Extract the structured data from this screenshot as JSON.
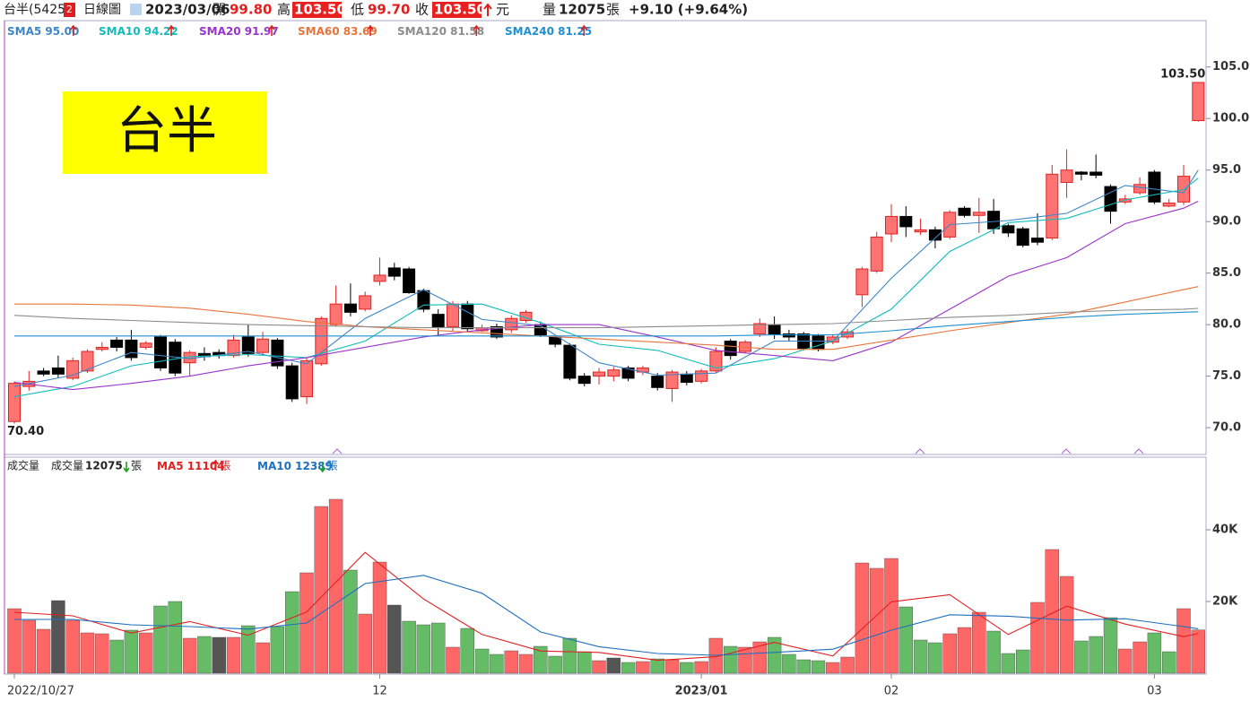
{
  "header": {
    "name": "台半(5425)",
    "badge": "2",
    "period": "日線圖",
    "date": "2023/03/06",
    "open_label": "開",
    "open": "99.80",
    "high_label": "高",
    "high": "103.50",
    "low_label": "低",
    "low": "99.70",
    "close_label": "收",
    "close": "103.50",
    "unit": "元",
    "volume_label": "量",
    "volume": "12075",
    "volume_unit": "張",
    "change": "+9.10 (+9.64%)"
  },
  "stamp": "台半",
  "chart_data": [
    {
      "type": "candlestick",
      "up_color": "#ff7373",
      "down_color": "#000000",
      "open": [
        70.6,
        74.0,
        75.5,
        75.8,
        74.8,
        75.5,
        77.6,
        78.5,
        78.5,
        77.8,
        78.8,
        78.3,
        76.3,
        77.2,
        77.3,
        77.0,
        78.8,
        77.3,
        78.5,
        76.0,
        73.0,
        76.2,
        80.0,
        82.0,
        81.5,
        84.2,
        85.5,
        85.4,
        83.3,
        81.0,
        79.8,
        82.0,
        79.4,
        79.8,
        79.5,
        80.4,
        80.0,
        78.8,
        78.0,
        75.0,
        75.0,
        75.0,
        75.8,
        75.4,
        75.0,
        73.8,
        75.2,
        74.5,
        75.5,
        78.4,
        77.4,
        79.1,
        80.0,
        79.1,
        79.1,
        78.9,
        78.3,
        78.8,
        82.9,
        85.2,
        88.8,
        90.5,
        89.0,
        89.2,
        88.5,
        91.3,
        90.6,
        91.0,
        89.6,
        89.3,
        88.4,
        88.4,
        93.8,
        94.8,
        94.8,
        93.4,
        91.9,
        92.8,
        94.8,
        91.5,
        91.9,
        99.8
      ],
      "high": [
        74.5,
        75.5,
        75.8,
        77.0,
        76.8,
        77.6,
        78.3,
        78.8,
        79.5,
        78.4,
        79.0,
        78.6,
        77.5,
        77.8,
        77.6,
        79.0,
        80.0,
        79.3,
        78.7,
        76.3,
        76.8,
        80.8,
        83.8,
        84.0,
        83.2,
        86.5,
        86.0,
        85.6,
        83.5,
        81.5,
        82.3,
        82.3,
        80.0,
        80.1,
        80.9,
        81.4,
        80.3,
        78.9,
        78.2,
        75.3,
        75.8,
        75.9,
        76.0,
        76.0,
        75.3,
        75.6,
        75.5,
        75.7,
        77.8,
        78.6,
        78.5,
        80.6,
        80.8,
        79.5,
        79.3,
        79.1,
        79.0,
        79.6,
        85.6,
        89.0,
        91.7,
        91.5,
        90.3,
        89.5,
        91.1,
        91.5,
        92.3,
        92.2,
        89.8,
        89.5,
        90.8,
        95.5,
        97.0,
        94.9,
        96.5,
        93.6,
        92.6,
        94.3,
        95.0,
        92.2,
        95.5,
        103.5
      ],
      "low": [
        70.4,
        73.6,
        75.0,
        74.8,
        74.6,
        75.3,
        77.4,
        77.4,
        76.5,
        77.6,
        75.5,
        75.0,
        75.0,
        76.5,
        76.7,
        76.8,
        76.9,
        77.0,
        75.7,
        72.5,
        72.3,
        76.0,
        79.8,
        80.8,
        81.3,
        83.8,
        84.3,
        83.0,
        81.2,
        79.0,
        79.4,
        79.3,
        79.3,
        78.6,
        79.2,
        80.2,
        78.8,
        77.8,
        74.6,
        74.0,
        74.2,
        74.5,
        74.5,
        75.1,
        73.6,
        72.5,
        74.1,
        74.3,
        75.3,
        76.6,
        77.2,
        78.8,
        78.6,
        78.4,
        77.5,
        77.4,
        78.1,
        78.6,
        81.7,
        85.0,
        88.0,
        88.5,
        88.7,
        87.4,
        88.3,
        90.4,
        88.9,
        88.8,
        88.5,
        87.5,
        87.7,
        88.2,
        92.3,
        94.0,
        94.2,
        89.8,
        91.7,
        92.6,
        91.7,
        91.4,
        91.6,
        99.7
      ],
      "close": [
        74.3,
        74.5,
        75.2,
        75.2,
        76.5,
        77.4,
        77.8,
        77.8,
        76.8,
        78.2,
        75.8,
        75.3,
        77.3,
        76.9,
        77.0,
        78.5,
        77.2,
        78.6,
        76.0,
        72.8,
        76.5,
        80.6,
        82.0,
        81.2,
        82.8,
        84.8,
        84.7,
        83.1,
        81.5,
        79.8,
        82.0,
        79.6,
        79.7,
        78.8,
        80.6,
        81.2,
        79.0,
        78.1,
        74.8,
        74.3,
        75.4,
        75.6,
        74.8,
        75.8,
        73.9,
        75.4,
        74.4,
        75.5,
        77.4,
        77.0,
        78.3,
        80.1,
        79.1,
        78.8,
        77.7,
        77.6,
        78.8,
        79.3,
        85.4,
        88.5,
        90.5,
        89.5,
        89.2,
        88.2,
        90.9,
        90.6,
        90.9,
        89.3,
        88.9,
        87.7,
        88.0,
        94.6,
        95.0,
        94.6,
        94.5,
        91.0,
        92.2,
        93.6,
        91.9,
        91.8,
        94.4,
        103.5
      ],
      "ylim": [
        67.4,
        109.5
      ],
      "yticks": [
        {
          "value": 70,
          "label": "70.0"
        },
        {
          "value": 75,
          "label": "75.0"
        },
        {
          "value": 80,
          "label": "80.0"
        },
        {
          "value": 85,
          "label": "85.0"
        },
        {
          "value": 90,
          "label": "90.0"
        },
        {
          "value": 95,
          "label": "95.0"
        },
        {
          "value": 100,
          "label": "100.0"
        },
        {
          "value": 105,
          "label": "105.0"
        }
      ],
      "annotations": [
        {
          "index": 81,
          "value": 103.5,
          "label": "103.50"
        },
        {
          "index": 0,
          "value": 70.4,
          "label": "70.40"
        }
      ],
      "ma_x": [
        0,
        4,
        8,
        12,
        16,
        20,
        24,
        28,
        32,
        36,
        40,
        44,
        48,
        52,
        56,
        60,
        64,
        68,
        72,
        76,
        80,
        81
      ],
      "series": [
        {
          "name": "SMA5",
          "label": "95.00",
          "color": "#3d85c6",
          "values": [
            74.0,
            75.1,
            77.3,
            76.7,
            77.4,
            76.2,
            80.6,
            83.4,
            80.5,
            79.9,
            76.3,
            75.1,
            75.3,
            78.4,
            78.4,
            84.5,
            89.7,
            90.1,
            90.8,
            93.5,
            92.8,
            95.0
          ]
        },
        {
          "name": "SMA10",
          "label": "94.22",
          "color": "#11bcbc",
          "values": [
            73.0,
            74.0,
            76.0,
            76.9,
            77.1,
            76.8,
            78.4,
            81.9,
            82.0,
            80.2,
            78.1,
            77.5,
            75.8,
            76.7,
            78.4,
            81.5,
            87.1,
            89.9,
            90.3,
            92.1,
            93.1,
            94.22
          ]
        },
        {
          "name": "SMA20",
          "label": "91.97",
          "color": "#9933cc",
          "values": [
            74.4,
            73.7,
            74.3,
            75.0,
            76.0,
            76.8,
            77.8,
            78.8,
            79.5,
            80.0,
            80.0,
            78.8,
            77.5,
            77.0,
            76.5,
            78.3,
            81.5,
            84.7,
            86.5,
            89.8,
            91.3,
            91.97
          ]
        },
        {
          "name": "SMA60",
          "label": "83.69",
          "color": "#e8743b",
          "values": [
            82.0,
            82.0,
            81.9,
            81.6,
            81.0,
            80.3,
            79.8,
            79.5,
            79.2,
            78.9,
            78.6,
            78.3,
            78.0,
            77.6,
            77.6,
            78.5,
            79.4,
            80.2,
            81.0,
            82.2,
            83.4,
            83.69
          ]
        },
        {
          "name": "SMA120",
          "label": "81.58",
          "color": "#8c8c8c",
          "values": [
            80.9,
            80.6,
            80.4,
            80.2,
            80.0,
            79.9,
            79.8,
            79.7,
            79.7,
            79.7,
            79.7,
            79.8,
            79.9,
            80.0,
            80.1,
            80.4,
            80.7,
            80.9,
            81.2,
            81.4,
            81.5,
            81.58
          ]
        },
        {
          "name": "SMA240",
          "label": "81.25",
          "color": "#1f8fcf",
          "values": [
            78.9,
            78.9,
            78.9,
            78.9,
            78.9,
            78.9,
            78.9,
            78.9,
            78.9,
            78.9,
            78.9,
            78.9,
            78.9,
            79.0,
            79.0,
            79.4,
            79.9,
            80.3,
            80.7,
            81.0,
            81.2,
            81.25
          ]
        }
      ]
    },
    {
      "type": "bar",
      "title": "成交量",
      "legend": {
        "label": "成交量",
        "value": "12075",
        "unit": "張"
      },
      "values": [
        18000,
        14750,
        12250,
        20250,
        14750,
        11250,
        11000,
        9250,
        12000,
        11250,
        18750,
        20000,
        9750,
        10250,
        10000,
        10000,
        13250,
        8500,
        13000,
        22750,
        28000,
        46500,
        48500,
        28750,
        16500,
        31000,
        19000,
        14500,
        13500,
        14000,
        7250,
        12500,
        6750,
        5250,
        6250,
        5250,
        7500,
        4750,
        9750,
        6000,
        3500,
        4250,
        3000,
        3250,
        4000,
        3750,
        3000,
        3250,
        9750,
        7500,
        7250,
        8750,
        10000,
        5250,
        3750,
        3500,
        3000,
        4500,
        30750,
        29250,
        32000,
        18500,
        9250,
        8500,
        11000,
        12750,
        17000,
        11750,
        5500,
        6500,
        19750,
        34500,
        27000,
        9000,
        10250,
        15500,
        6750,
        8750,
        11250,
        6000,
        18000,
        12075
      ],
      "colors": [
        "#ff6666",
        "#ff6666",
        "#ff6666",
        "#555555",
        "#ff6666",
        "#ff6666",
        "#ff6666",
        "#66bb66",
        "#66bb66",
        "#ff6666",
        "#66bb66",
        "#66bb66",
        "#ff6666",
        "#66bb66",
        "#555555",
        "#ff6666",
        "#66bb66",
        "#ff6666",
        "#66bb66",
        "#66bb66",
        "#ff6666",
        "#ff6666",
        "#ff6666",
        "#66bb66",
        "#ff6666",
        "#ff6666",
        "#555555",
        "#66bb66",
        "#66bb66",
        "#66bb66",
        "#ff6666",
        "#66bb66",
        "#66bb66",
        "#66bb66",
        "#ff6666",
        "#ff6666",
        "#66bb66",
        "#66bb66",
        "#66bb66",
        "#66bb66",
        "#ff6666",
        "#555555",
        "#66bb66",
        "#ff6666",
        "#66bb66",
        "#ff6666",
        "#66bb66",
        "#ff6666",
        "#ff6666",
        "#66bb66",
        "#ff6666",
        "#ff6666",
        "#66bb66",
        "#66bb66",
        "#66bb66",
        "#66bb66",
        "#ff6666",
        "#ff6666",
        "#ff6666",
        "#ff6666",
        "#ff6666",
        "#66bb66",
        "#66bb66",
        "#66bb66",
        "#ff6666",
        "#ff6666",
        "#ff6666",
        "#66bb66",
        "#66bb66",
        "#66bb66",
        "#ff6666",
        "#ff6666",
        "#ff6666",
        "#66bb66",
        "#66bb66",
        "#66bb66",
        "#ff6666",
        "#ff6666",
        "#66bb66",
        "#66bb66",
        "#ff6666",
        "#ff6666"
      ],
      "ylim": [
        0,
        60000
      ],
      "yticks": [
        {
          "value": 20000,
          "label": "20K"
        },
        {
          "value": 40000,
          "label": "40K"
        }
      ],
      "ma_x": [
        0,
        4,
        8,
        12,
        16,
        20,
        24,
        28,
        32,
        36,
        40,
        44,
        48,
        52,
        56,
        60,
        64,
        68,
        72,
        76,
        80,
        81
      ],
      "series": [
        {
          "name": "MA5",
          "label": "11104",
          "unit": "張",
          "color": "#e02020",
          "values": [
            17000,
            16000,
            11200,
            14400,
            10600,
            17100,
            33700,
            20700,
            10800,
            6200,
            5800,
            3600,
            4600,
            8600,
            4800,
            19900,
            21900,
            10800,
            18700,
            13700,
            10200,
            11104
          ]
        },
        {
          "name": "MA10",
          "label": "12389",
          "unit": "張",
          "color": "#1f6fbf",
          "values": [
            15000,
            15000,
            13500,
            13000,
            12300,
            14000,
            25000,
            27300,
            22300,
            11500,
            7400,
            5500,
            5000,
            5800,
            6700,
            12000,
            16300,
            15900,
            14800,
            15200,
            13000,
            12389
          ]
        }
      ],
      "x_labels": [
        {
          "index": 0,
          "label": "2022/10/27"
        },
        {
          "index": 25,
          "label": "12"
        },
        {
          "index": 47,
          "label": "2023/01"
        },
        {
          "index": 60,
          "label": "02"
        },
        {
          "index": 78,
          "label": "03"
        }
      ]
    }
  ]
}
